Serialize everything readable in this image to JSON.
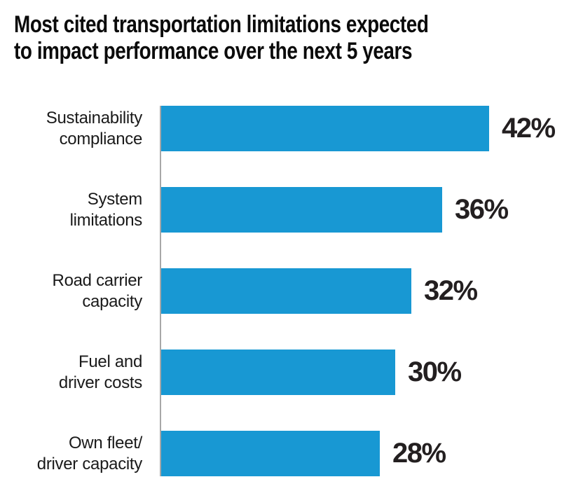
{
  "title": "Most cited transportation limitations expected\nto impact performance over the next 5 years",
  "chart_data": {
    "type": "bar",
    "orientation": "horizontal",
    "title": "Most cited transportation limitations expected to impact performance over the next 5 years",
    "categories": [
      "Sustainability\ncompliance",
      "System\nlimitations",
      "Road carrier\ncapacity",
      "Fuel and\ndriver costs",
      "Own fleet/\ndriver capacity"
    ],
    "values": [
      42,
      36,
      32,
      30,
      28
    ],
    "value_labels": [
      "42%",
      "36%",
      "32%",
      "30%",
      "28%"
    ],
    "xlabel": "",
    "ylabel": "",
    "xlim": [
      0,
      52
    ],
    "grid": false,
    "legend_position": "none",
    "bar_color": "#1898d3",
    "axis_line_color": "#a8a8a8",
    "value_label_color": "#231f20"
  }
}
